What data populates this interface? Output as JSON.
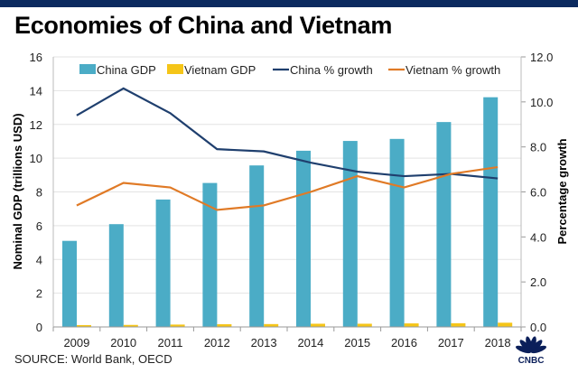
{
  "title": "Economies of China and Vietnam",
  "source": "SOURCE: World Bank, OECD",
  "logo_text": "CNBC",
  "chart_data": {
    "type": "bar+line",
    "title": "Economies of China and Vietnam",
    "categories": [
      "2009",
      "2010",
      "2011",
      "2012",
      "2013",
      "2014",
      "2015",
      "2016",
      "2017",
      "2018"
    ],
    "ylabel": "Nominal GDP (trillions USD)",
    "y2label": "Percentage growth",
    "ylim": [
      0,
      16
    ],
    "y2lim": [
      0,
      12
    ],
    "yticks": [
      "0",
      "2",
      "4",
      "6",
      "8",
      "10",
      "12",
      "14",
      "16"
    ],
    "y2ticks": [
      "0.0",
      "2.0",
      "4.0",
      "6.0",
      "8.0",
      "10.0",
      "12.0"
    ],
    "grid": true,
    "legend": "top",
    "bars": [
      {
        "name": "China GDP",
        "color": "#4bacc6",
        "values": [
          5.1,
          6.09,
          7.55,
          8.53,
          9.57,
          10.44,
          11.02,
          11.14,
          12.14,
          13.61
        ]
      },
      {
        "name": "Vietnam GDP",
        "color": "#f5c518",
        "values": [
          0.11,
          0.12,
          0.14,
          0.16,
          0.17,
          0.19,
          0.19,
          0.21,
          0.22,
          0.25
        ]
      }
    ],
    "lines": [
      {
        "name": "China % growth",
        "color": "#1f3f6e",
        "axis": "right",
        "values": [
          9.4,
          10.6,
          9.5,
          7.9,
          7.8,
          7.3,
          6.9,
          6.7,
          6.8,
          6.6
        ]
      },
      {
        "name": "Vietnam % growth",
        "color": "#e07a26",
        "axis": "right",
        "values": [
          5.4,
          6.4,
          6.2,
          5.2,
          5.4,
          6.0,
          6.7,
          6.2,
          6.8,
          7.1
        ]
      }
    ]
  }
}
